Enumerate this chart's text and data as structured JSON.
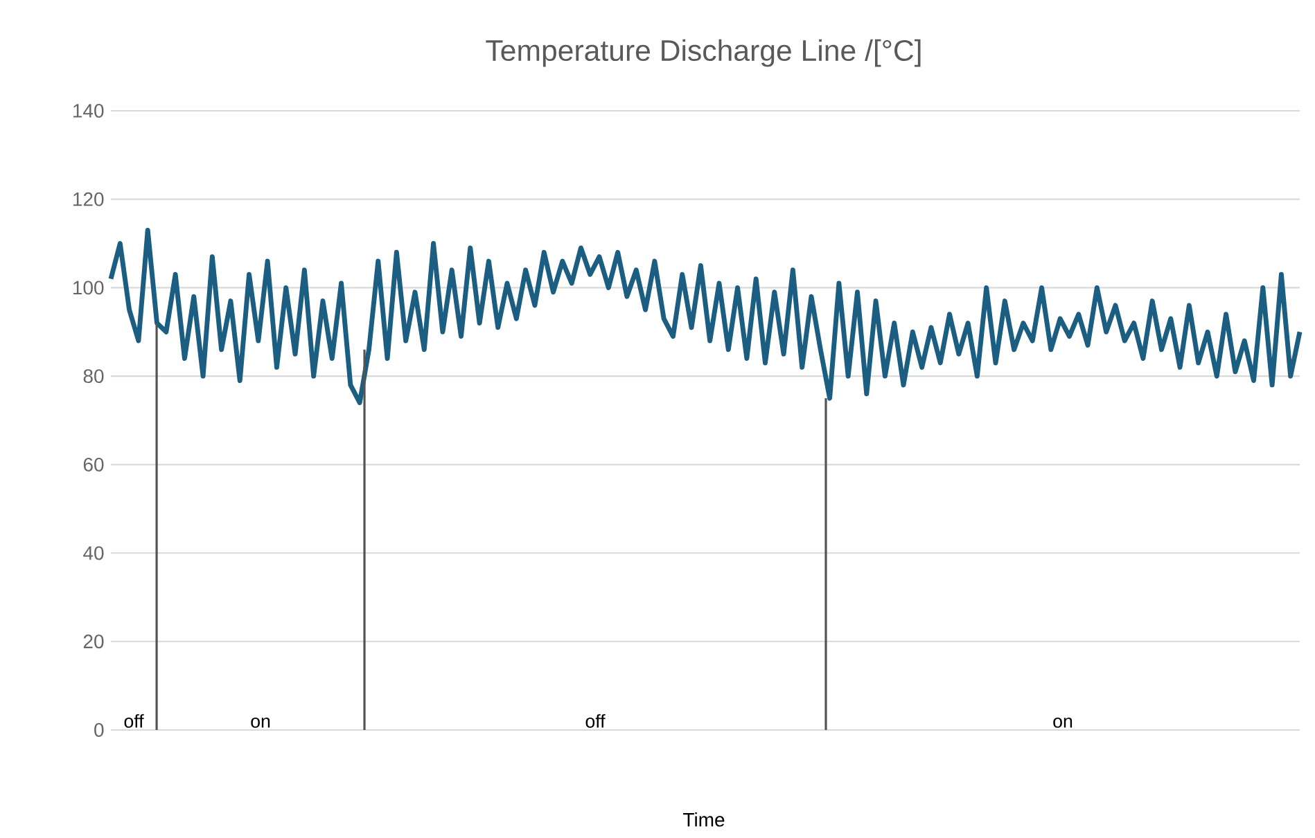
{
  "chart_data": {
    "type": "line",
    "title": "Temperature Discharge Line /[°C]",
    "xlabel": "Time",
    "categories": [
      null,
      null,
      null,
      null,
      null,
      null,
      null,
      null,
      null,
      null,
      null,
      null,
      null,
      null,
      null,
      null,
      null,
      null,
      null,
      null,
      null,
      null,
      null,
      null,
      null,
      null,
      null,
      null,
      null,
      null,
      null,
      null,
      null,
      null,
      null,
      null,
      null,
      null,
      null,
      null,
      null,
      null,
      null,
      null,
      null,
      null,
      null,
      null,
      null,
      null,
      null,
      null,
      null,
      null,
      null,
      null,
      null,
      null,
      null,
      null,
      null,
      null,
      null,
      null,
      null,
      null,
      null,
      null,
      null,
      null,
      null,
      null,
      null,
      null,
      null,
      null,
      null,
      null,
      null,
      null,
      null,
      null,
      null,
      null,
      null,
      null,
      null,
      null,
      null,
      null,
      null,
      null,
      null,
      null,
      null,
      null,
      null,
      null,
      null,
      null,
      null,
      null,
      null,
      null,
      null,
      null,
      null,
      null,
      null,
      null,
      null,
      null,
      null,
      null,
      null,
      null,
      null,
      null,
      null,
      null,
      null,
      null,
      null,
      null,
      null,
      null,
      null,
      null,
      null,
      null
    ],
    "values": [
      102,
      110,
      95,
      88,
      113,
      92,
      90,
      103,
      84,
      98,
      80,
      107,
      86,
      97,
      79,
      103,
      88,
      106,
      82,
      100,
      85,
      104,
      80,
      97,
      84,
      101,
      78,
      74,
      86,
      106,
      84,
      108,
      88,
      99,
      86,
      110,
      90,
      104,
      89,
      109,
      92,
      106,
      91,
      101,
      93,
      104,
      96,
      108,
      99,
      106,
      101,
      109,
      103,
      107,
      100,
      108,
      98,
      104,
      95,
      106,
      93,
      89,
      103,
      91,
      105,
      88,
      101,
      86,
      100,
      84,
      102,
      83,
      99,
      85,
      104,
      82,
      98,
      86,
      75,
      101,
      80,
      99,
      76,
      97,
      80,
      92,
      78,
      90,
      82,
      91,
      83,
      94,
      85,
      92,
      80,
      100,
      83,
      97,
      86,
      92,
      88,
      100,
      86,
      93,
      89,
      94,
      87,
      100,
      90,
      96,
      88,
      92,
      84,
      97,
      86,
      93,
      82,
      96,
      83,
      90,
      80,
      94,
      81,
      88,
      79,
      100,
      78,
      103,
      80,
      90
    ],
    "color": "#1b5e82",
    "ylim": [
      0,
      140
    ],
    "yticks": [
      0,
      20,
      40,
      60,
      80,
      100,
      120,
      140
    ],
    "grid": "y",
    "tick_labels": "y",
    "annotations": [
      "off",
      "on",
      "off",
      "on"
    ]
  }
}
